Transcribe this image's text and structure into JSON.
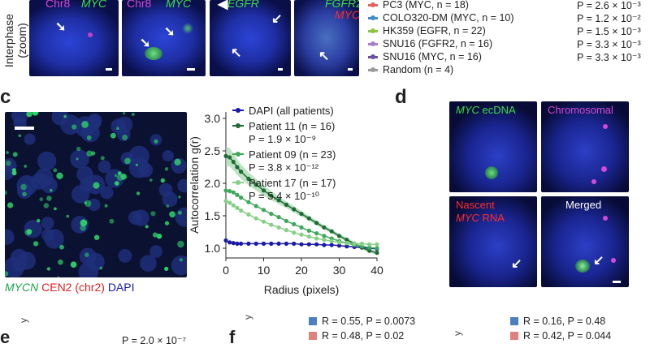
{
  "interphase": {
    "row_label": [
      "Interphase",
      "(zoom)"
    ],
    "tiles": [
      {
        "left": "Chr8",
        "right": "MYC"
      },
      {
        "left": "Chr8",
        "right": "MYC"
      },
      {
        "top": "EGFR"
      },
      {
        "top": "FGFR2",
        "bottom": "MYC"
      }
    ]
  },
  "legend_top": {
    "rows": [
      {
        "name": "PC3 (MYC, n = 18)",
        "p": "P = 2.6 × 10⁻³",
        "color": "#e0655f"
      },
      {
        "name": "COLO320-DM (MYC, n = 10)",
        "p": "P = 1.2 × 10⁻²",
        "color": "#3f8fcf"
      },
      {
        "name": "HK359 (EGFR, n = 22)",
        "p": "P = 1.5 × 10⁻³",
        "color": "#8cc63f"
      },
      {
        "name": "SNU16 (FGFR2, n = 16)",
        "p": "P = 3.3 × 10⁻³",
        "color": "#a87fc9"
      },
      {
        "name": "SNU16 (MYC, n = 16)",
        "p": "P = 3.3 × 10⁻³",
        "color": "#6a4fa3"
      },
      {
        "name": "Random (n = 4)",
        "p": "",
        "color": "#999999"
      }
    ]
  },
  "panel_c": {
    "letter": "c",
    "caption_mycn": "MYCN",
    "caption_cen2": "CEN2 (chr2)",
    "caption_dapi": "DAPI"
  },
  "chart_data": {
    "type": "line",
    "xlabel": "Radius (pixels)",
    "ylabel": "Autocorrelation g(r)",
    "xlim": [
      0,
      40
    ],
    "ylim": [
      0.85,
      3.1
    ],
    "xticks": [
      0,
      10,
      20,
      30,
      40
    ],
    "yticks": [
      1.0,
      1.5,
      2.0,
      2.5,
      3.0
    ],
    "ytick_labels": [
      "1.0",
      "1.5",
      "2.0",
      "2.5",
      "3.0"
    ],
    "legend_placement": "top-left",
    "series": [
      {
        "name": "DAPI (all patients)",
        "p": "",
        "color": "#1a1aa6",
        "x": [
          0,
          1,
          2,
          3,
          4,
          6,
          8,
          10,
          12,
          14,
          16,
          18,
          20,
          22,
          24,
          26,
          28,
          30,
          32,
          34,
          36,
          38,
          40
        ],
        "y": [
          1.12,
          1.09,
          1.08,
          1.07,
          1.07,
          1.07,
          1.07,
          1.07,
          1.07,
          1.07,
          1.07,
          1.07,
          1.06,
          1.06,
          1.06,
          1.05,
          1.05,
          1.04,
          1.03,
          1.02,
          1.01,
          1.0,
          0.99
        ]
      },
      {
        "name": "Patient 11 (n = 16)",
        "p": "P = 1.9 × 10⁻⁹",
        "color": "#1e6b35",
        "x": [
          0,
          1,
          2,
          3,
          4,
          6,
          8,
          10,
          12,
          14,
          16,
          18,
          20,
          22,
          24,
          26,
          28,
          30,
          32,
          34,
          36,
          38,
          40
        ],
        "y": [
          2.42,
          2.4,
          2.33,
          2.25,
          2.18,
          2.07,
          1.98,
          1.89,
          1.81,
          1.74,
          1.67,
          1.6,
          1.53,
          1.46,
          1.39,
          1.32,
          1.26,
          1.19,
          1.13,
          1.07,
          1.01,
          0.96,
          0.93
        ]
      },
      {
        "name": "Patient 09 (n = 23)",
        "p": "P = 3.8 × 10⁻¹²",
        "color": "#3ea85a",
        "x": [
          0,
          1,
          2,
          3,
          4,
          6,
          8,
          10,
          12,
          14,
          16,
          18,
          20,
          22,
          24,
          26,
          28,
          30,
          32,
          34,
          36,
          38,
          40
        ],
        "y": [
          1.89,
          1.88,
          1.86,
          1.82,
          1.78,
          1.71,
          1.65,
          1.59,
          1.53,
          1.48,
          1.42,
          1.37,
          1.32,
          1.27,
          1.23,
          1.19,
          1.15,
          1.11,
          1.08,
          1.05,
          1.03,
          1.01,
          1.0
        ]
      },
      {
        "name": "Patient 17 (n = 17)",
        "p": "P = 5.4 × 10⁻¹⁰",
        "color": "#86cf86",
        "x": [
          0,
          1,
          2,
          3,
          4,
          6,
          8,
          10,
          12,
          14,
          16,
          18,
          20,
          22,
          24,
          26,
          28,
          30,
          32,
          34,
          36,
          38,
          40
        ],
        "y": [
          1.73,
          1.7,
          1.66,
          1.62,
          1.58,
          1.52,
          1.46,
          1.41,
          1.36,
          1.32,
          1.28,
          1.24,
          1.21,
          1.18,
          1.15,
          1.13,
          1.11,
          1.09,
          1.08,
          1.07,
          1.07,
          1.06,
          1.06
        ]
      }
    ],
    "ci_series": "Patient 11 (n = 16)",
    "ci_half_width": [
      0.15,
      0.14,
      0.13,
      0.12,
      0.11,
      0.1,
      0.09,
      0.08,
      0.07,
      0.06,
      0.05,
      0.05,
      0.04,
      0.04,
      0.04,
      0.03,
      0.03,
      0.03,
      0.03,
      0.03,
      0.03,
      0.03,
      0.03
    ]
  },
  "panel_d": {
    "letter": "d",
    "tiles": [
      {
        "label_line1_italic": "MYC",
        "label_line1_rest": " ecDNA",
        "color": "#3ddc4a"
      },
      {
        "label": "Chromosomal",
        "color": "#d44ad8"
      },
      {
        "label_line1": "Nascent",
        "label_line2_italic": "MYC",
        "label_line2_rest": " RNA",
        "color": "#ff2a2a"
      },
      {
        "label": "Merged",
        "color": "#ffffff"
      }
    ]
  },
  "bottom": {
    "left_partial": "P = 2.0 × 10⁻⁷",
    "f_letter": "f",
    "left_legend": [
      {
        "text": "R = 0.55, P = 0.0073",
        "color": "#4a7fc0"
      },
      {
        "text": "R = 0.48, P = 0.02",
        "color": "#e0807a"
      }
    ],
    "right_legend": [
      {
        "text": "R = 0.16, P = 0.48",
        "color": "#4a7fc0"
      },
      {
        "text": "R = 0.42, P = 0.044",
        "color": "#e0807a"
      }
    ]
  }
}
